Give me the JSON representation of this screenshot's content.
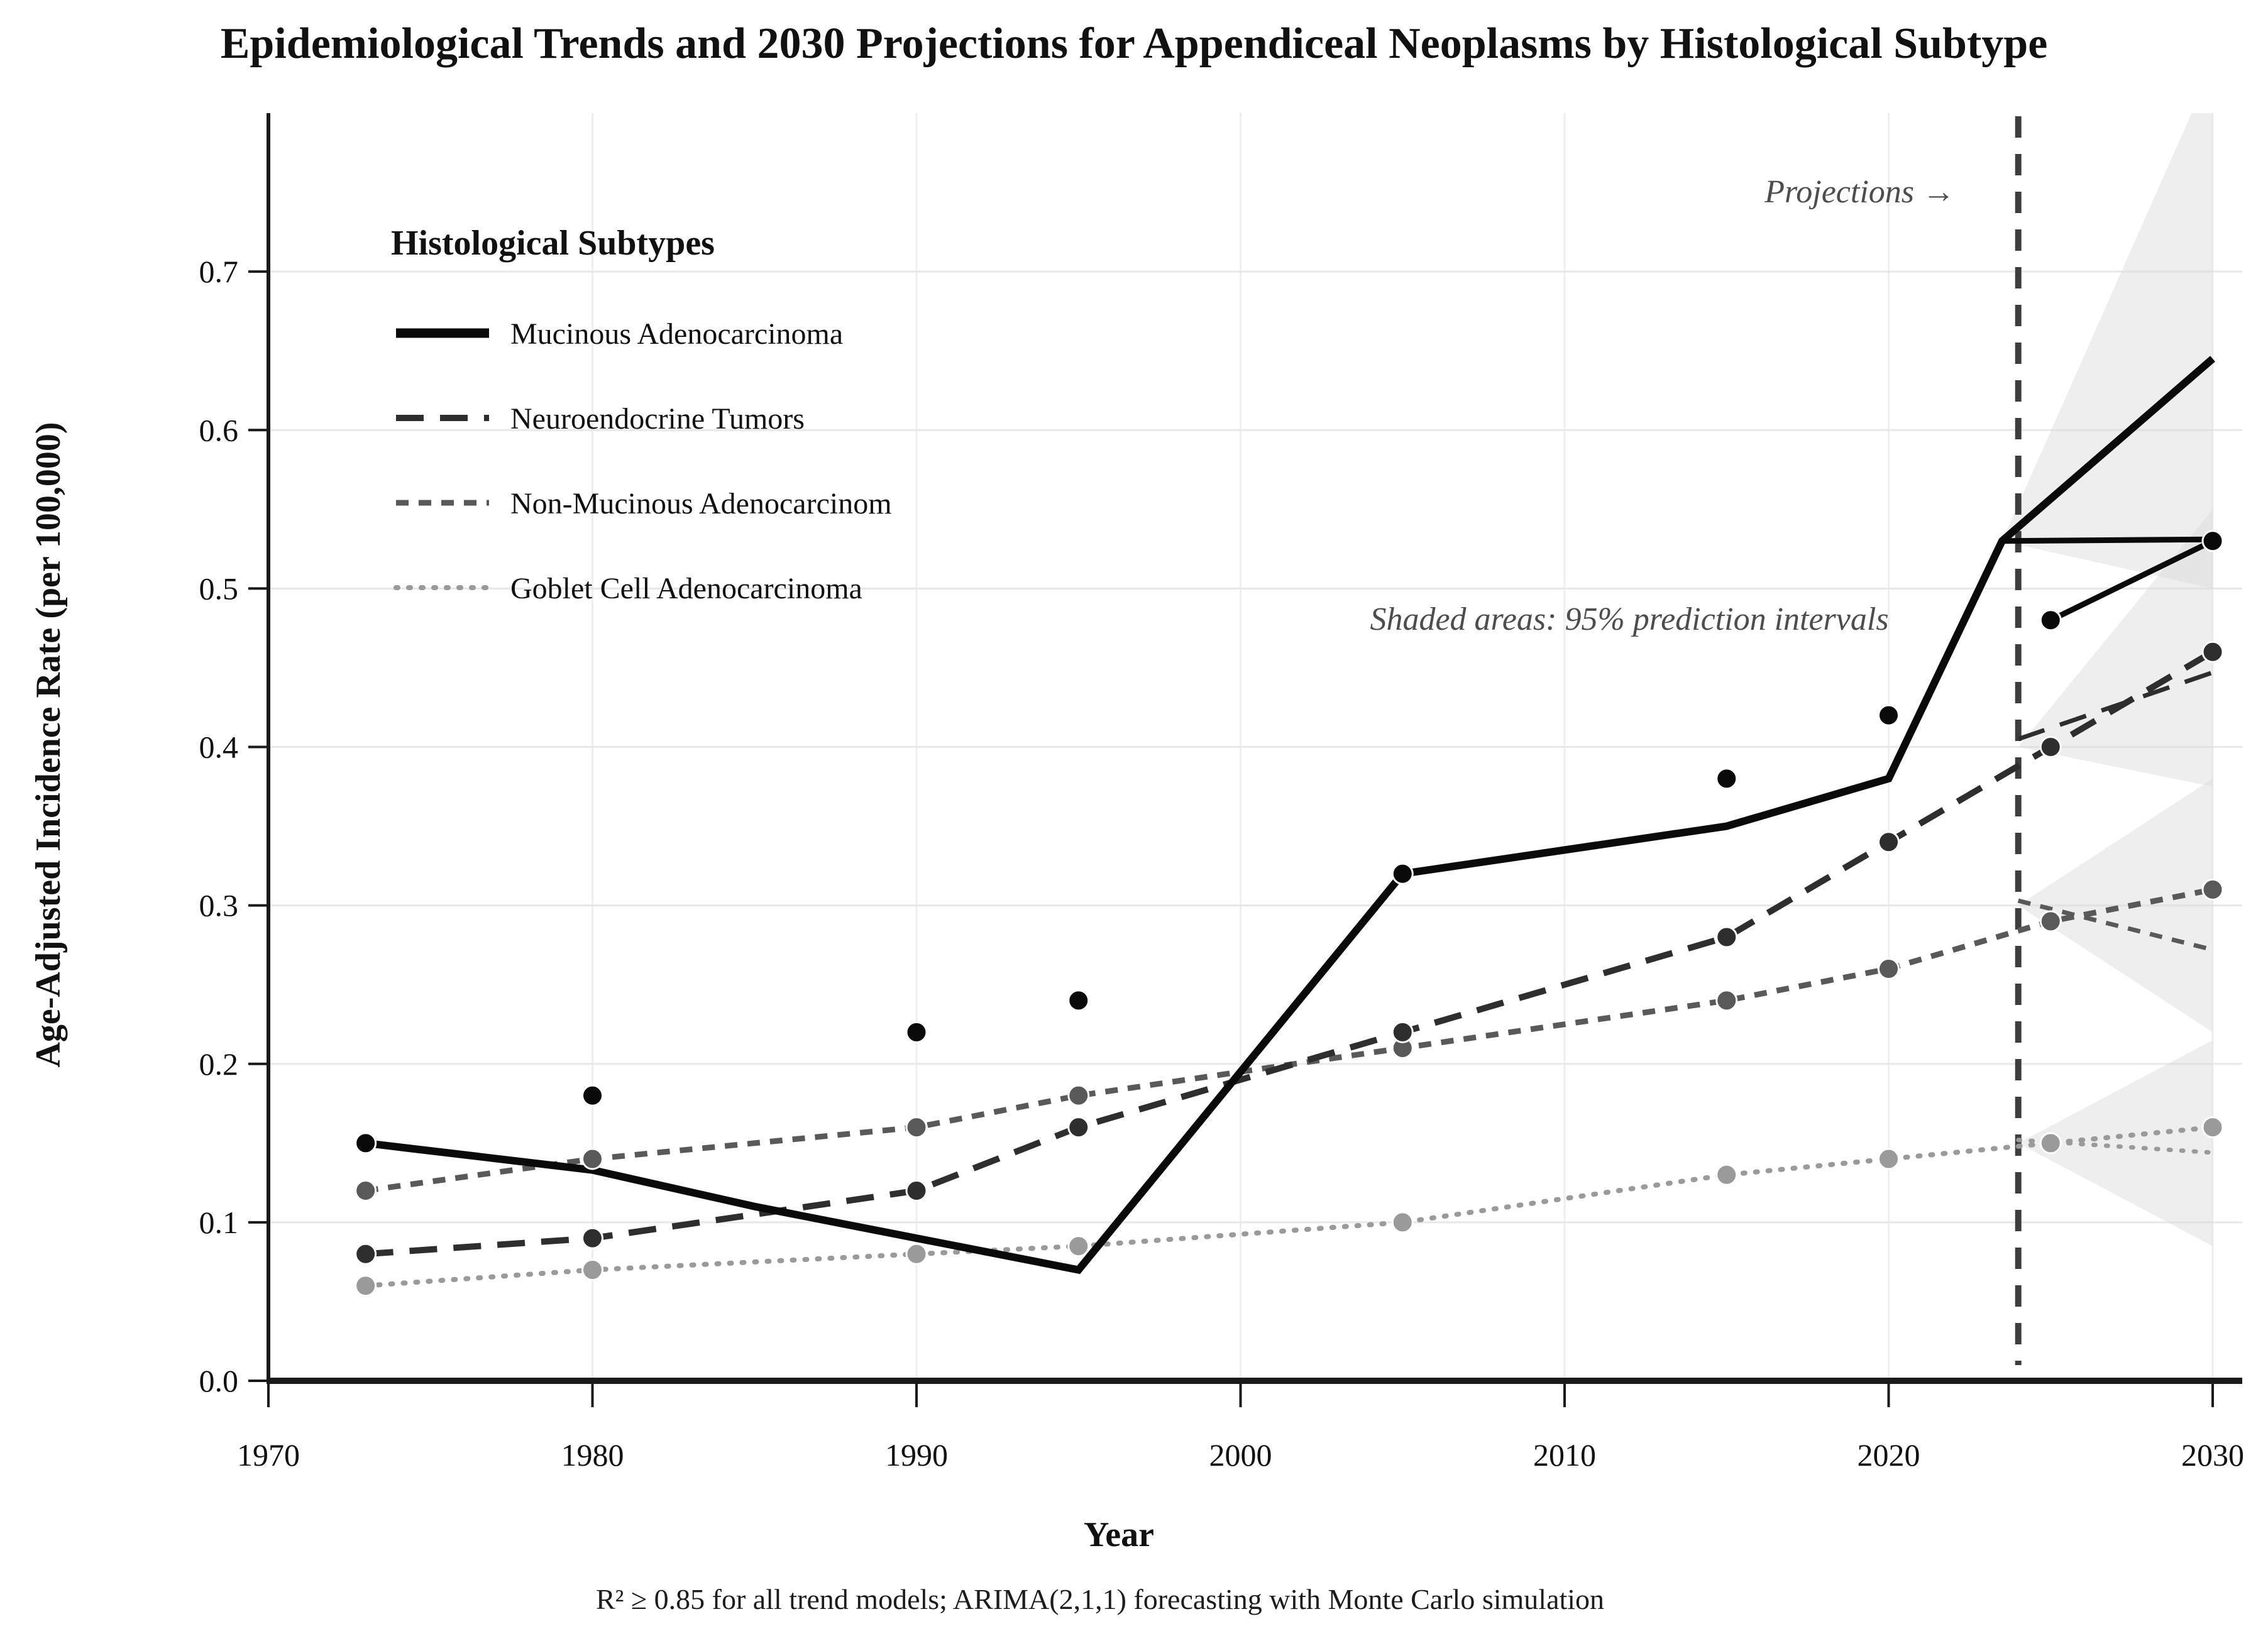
{
  "figure": {
    "title": "Epidemiological Trends and 2030 Projections for Appendiceal Neoplasms by Histological Subtype",
    "footnote": "R² ≥ 0.85 for all trend models; ARIMA(2,1,1) forecasting with Monte Carlo simulation",
    "annotations": {
      "projections": "Projections →",
      "shaded": "Shaded areas: 95% prediction intervals"
    },
    "legend_title": "Histological Subtypes"
  },
  "chart_data": {
    "type": "line",
    "title": "Epidemiological Trends and 2030 Projections for Appendiceal Neoplasms by Histological Subtype",
    "xlabel": "Year",
    "ylabel": "Age-Adjusted Incidence Rate (per 100,000)",
    "xlim": [
      1970,
      2030
    ],
    "ylim": [
      0,
      0.8
    ],
    "x_ticks": [
      1970,
      1980,
      1990,
      2000,
      2010,
      2020,
      2030
    ],
    "y_ticks": [
      0.0,
      0.1,
      0.2,
      0.3,
      0.4,
      0.5,
      0.6,
      0.7
    ],
    "grid": true,
    "legend_position": "upper-left",
    "projection_start_year": 2024,
    "projection_note": "Shaded areas: 95% prediction intervals",
    "x": [
      1973,
      1980,
      1990,
      1995,
      2005,
      2015,
      2020,
      2025,
      2030
    ],
    "projected_years": [
      2025,
      2030
    ],
    "series": [
      {
        "name": "Mucinous Adenocarcinoma",
        "color": "#0a0a0a",
        "dash": "solid",
        "line_width": 12,
        "observed_points": [
          [
            1973,
            0.15
          ],
          [
            1980,
            0.18
          ],
          [
            1990,
            0.22
          ],
          [
            1995,
            0.24
          ],
          [
            2005,
            0.32
          ],
          [
            2015,
            0.38
          ],
          [
            2020,
            0.42
          ]
        ],
        "projected_points": [
          [
            2025,
            0.48
          ],
          [
            2030,
            0.53
          ]
        ],
        "trend_line": [
          [
            1973,
            0.15
          ],
          [
            1980,
            0.133
          ],
          [
            1985,
            0.11
          ],
          [
            1990,
            0.09
          ],
          [
            1995,
            0.07
          ],
          [
            2005,
            0.32
          ],
          [
            2015,
            0.35
          ],
          [
            2020,
            0.38
          ],
          [
            2023.5,
            0.53
          ],
          [
            2030,
            0.645
          ]
        ],
        "projection_connector": [
          [
            2025,
            0.48
          ],
          [
            2030,
            0.53
          ]
        ],
        "secondary_branch": [
          [
            2023.5,
            0.53
          ],
          [
            2030,
            0.531
          ]
        ],
        "ci_polygon": [
          [
            2023.5,
            0.53
          ],
          [
            2030,
            0.83
          ],
          [
            2030,
            0.5
          ]
        ]
      },
      {
        "name": "Neuroendocrine Tumors",
        "color": "#2e2e2e",
        "dash": "dash-long",
        "line_width": 10,
        "observed_points": [
          [
            1973,
            0.08
          ],
          [
            1980,
            0.09
          ],
          [
            1990,
            0.12
          ],
          [
            1995,
            0.16
          ],
          [
            2005,
            0.22
          ],
          [
            2015,
            0.28
          ],
          [
            2020,
            0.34
          ]
        ],
        "projected_points": [
          [
            2025,
            0.4
          ],
          [
            2030,
            0.46
          ]
        ],
        "trend_line": [
          [
            1973,
            0.08
          ],
          [
            1980,
            0.09
          ],
          [
            1990,
            0.12
          ],
          [
            1995,
            0.16
          ],
          [
            2005,
            0.22
          ],
          [
            2015,
            0.28
          ],
          [
            2020,
            0.34
          ],
          [
            2025,
            0.4
          ],
          [
            2030,
            0.46
          ]
        ],
        "secondary_branch": [
          [
            2024,
            0.405
          ],
          [
            2030,
            0.447
          ]
        ],
        "ci_polygon": [
          [
            2024,
            0.4
          ],
          [
            2030,
            0.55
          ],
          [
            2030,
            0.375
          ]
        ]
      },
      {
        "name": "Non-Mucinous Adenocarcinom",
        "color": "#595959",
        "dash": "dash",
        "line_width": 9,
        "observed_points": [
          [
            1973,
            0.12
          ],
          [
            1980,
            0.14
          ],
          [
            1990,
            0.16
          ],
          [
            1995,
            0.18
          ],
          [
            2005,
            0.21
          ],
          [
            2015,
            0.24
          ],
          [
            2020,
            0.26
          ]
        ],
        "projected_points": [
          [
            2025,
            0.29
          ],
          [
            2030,
            0.31
          ]
        ],
        "trend_line": [
          [
            1973,
            0.12
          ],
          [
            1980,
            0.14
          ],
          [
            1990,
            0.16
          ],
          [
            1995,
            0.18
          ],
          [
            2005,
            0.21
          ],
          [
            2015,
            0.24
          ],
          [
            2020,
            0.26
          ],
          [
            2025,
            0.29
          ],
          [
            2030,
            0.31
          ]
        ],
        "secondary_branch": [
          [
            2024,
            0.303
          ],
          [
            2030,
            0.272
          ]
        ],
        "ci_polygon": [
          [
            2024,
            0.3
          ],
          [
            2030,
            0.38
          ],
          [
            2030,
            0.22
          ]
        ]
      },
      {
        "name": "Goblet Cell Adenocarcinoma",
        "color": "#9a9a9a",
        "dash": "dot",
        "line_width": 8,
        "observed_points": [
          [
            1973,
            0.06
          ],
          [
            1980,
            0.07
          ],
          [
            1990,
            0.08
          ],
          [
            1995,
            0.085
          ],
          [
            2005,
            0.1
          ],
          [
            2015,
            0.13
          ],
          [
            2020,
            0.14
          ]
        ],
        "projected_points": [
          [
            2025,
            0.15
          ],
          [
            2030,
            0.16
          ]
        ],
        "trend_line": [
          [
            1973,
            0.06
          ],
          [
            1980,
            0.07
          ],
          [
            1990,
            0.08
          ],
          [
            1995,
            0.085
          ],
          [
            2005,
            0.1
          ],
          [
            2015,
            0.13
          ],
          [
            2020,
            0.14
          ],
          [
            2025,
            0.15
          ],
          [
            2030,
            0.16
          ]
        ],
        "secondary_branch": [
          [
            2024,
            0.152
          ],
          [
            2030,
            0.144
          ]
        ],
        "ci_polygon": [
          [
            2024,
            0.15
          ],
          [
            2030,
            0.215
          ],
          [
            2030,
            0.085
          ]
        ]
      }
    ]
  }
}
